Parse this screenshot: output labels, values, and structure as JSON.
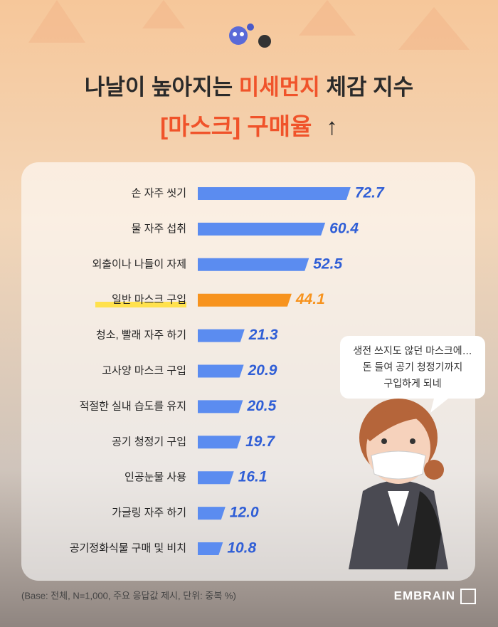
{
  "chart_data": {
    "type": "bar",
    "orientation": "horizontal",
    "title": [
      "나날이 높아지는 ",
      "미세먼지",
      " 체감 지수"
    ],
    "subtitle": [
      "[마스크] 구매율",
      "↑"
    ],
    "categories": [
      "손 자주 씻기",
      "물 자주 섭취",
      "외출이나 나들이 자제",
      "일반 마스크 구입",
      "청소, 빨래 자주 하기",
      "고사양 마스크 구입",
      "적절한 실내 습도를 유지",
      "공기 청정기 구입",
      "인공눈물 사용",
      "가글링 자주 하기",
      "공기정화식물 구매 및 비치"
    ],
    "values": [
      72.7,
      60.4,
      52.5,
      44.1,
      21.3,
      20.9,
      20.5,
      19.7,
      16.1,
      12.0,
      10.8
    ],
    "value_labels": [
      "72.7",
      "60.4",
      "52.5",
      "44.1",
      "21.3",
      "20.9",
      "20.5",
      "19.7",
      "16.1",
      "12.0",
      "10.8"
    ],
    "colors": [
      "#5b8cf0",
      "#5b8cf0",
      "#5b8cf0",
      "#f7931e",
      "#5b8cf0",
      "#5b8cf0",
      "#5b8cf0",
      "#5b8cf0",
      "#5b8cf0",
      "#5b8cf0",
      "#5b8cf0"
    ],
    "xlim": [
      0,
      80
    ],
    "bubble": [
      "생전 쓰지도 않던 마스크에…",
      "돈 들여 공기 청정기까지",
      "구입하게 되네"
    ],
    "footnote": "(Base: 전체, N=1,000, 주요 응답값 제시, 단위: 중복 %)",
    "logo": "EMBRAIN"
  }
}
